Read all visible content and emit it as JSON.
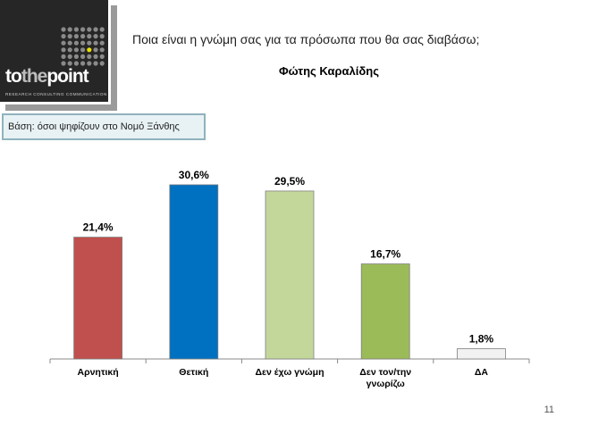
{
  "logo": {
    "brand_to": "to",
    "brand_the": "the",
    "brand_point": "point",
    "tagline": "RESEARCH CONSULTING COMMUNICATION"
  },
  "header": {
    "question": "Ποια είναι η γνώμη σας για τα πρόσωπα που θα σας διαβάσω;",
    "subject": "Φώτης Καραλίδης"
  },
  "base_note": "Βάση: όσοι ψηφίζουν στο  Νομό Ξάνθης",
  "page_number": "11",
  "chart_data": {
    "type": "bar",
    "categories": [
      "Αρνητική",
      "Θετική",
      "Δεν έχω γνώμη",
      "Δεν τον/την γνωρίζω",
      "ΔΑ"
    ],
    "values": [
      21.4,
      30.6,
      29.5,
      16.7,
      1.8
    ],
    "value_labels": [
      "21,4%",
      "30,6%",
      "29,5%",
      "16,7%",
      "1,8%"
    ],
    "colors": [
      "#c0504d",
      "#0070c0",
      "#c4d79b",
      "#9bbb59",
      "#f2f2f2"
    ],
    "ylim": [
      0,
      32
    ],
    "grid": false,
    "legend": "none"
  }
}
